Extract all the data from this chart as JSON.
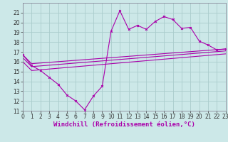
{
  "bg_color": "#cce8e8",
  "line_color": "#aa00aa",
  "grid_color": "#aacccc",
  "xlabel": "Windchill (Refroidissement éolien,°C)",
  "xlabel_fontsize": 6.5,
  "tick_fontsize": 5.5,
  "ylim": [
    11,
    22
  ],
  "xlim": [
    0,
    23
  ],
  "yticks": [
    11,
    12,
    13,
    14,
    15,
    16,
    17,
    18,
    19,
    20,
    21
  ],
  "xticks": [
    0,
    1,
    2,
    3,
    4,
    5,
    6,
    7,
    8,
    9,
    10,
    11,
    12,
    13,
    14,
    15,
    16,
    17,
    18,
    19,
    20,
    21,
    22,
    23
  ],
  "series1_x": [
    0,
    1,
    2,
    3,
    4,
    5,
    6,
    7,
    8,
    9,
    10,
    11,
    12,
    13,
    14,
    15,
    16,
    17,
    18,
    19,
    20,
    21,
    22,
    23
  ],
  "series1_y": [
    16.7,
    15.6,
    15.1,
    14.4,
    13.7,
    12.6,
    12.0,
    11.1,
    12.5,
    13.5,
    19.1,
    21.2,
    19.3,
    19.7,
    19.3,
    20.1,
    20.6,
    20.3,
    19.4,
    19.5,
    18.1,
    17.7,
    17.2,
    17.3
  ],
  "series2_x": [
    0,
    1,
    23
  ],
  "series2_y": [
    16.7,
    15.8,
    17.3
  ],
  "series3_x": [
    0,
    1,
    23
  ],
  "series3_y": [
    16.4,
    15.5,
    17.1
  ],
  "series4_x": [
    0,
    1,
    23
  ],
  "series4_y": [
    16.0,
    15.1,
    16.8
  ]
}
